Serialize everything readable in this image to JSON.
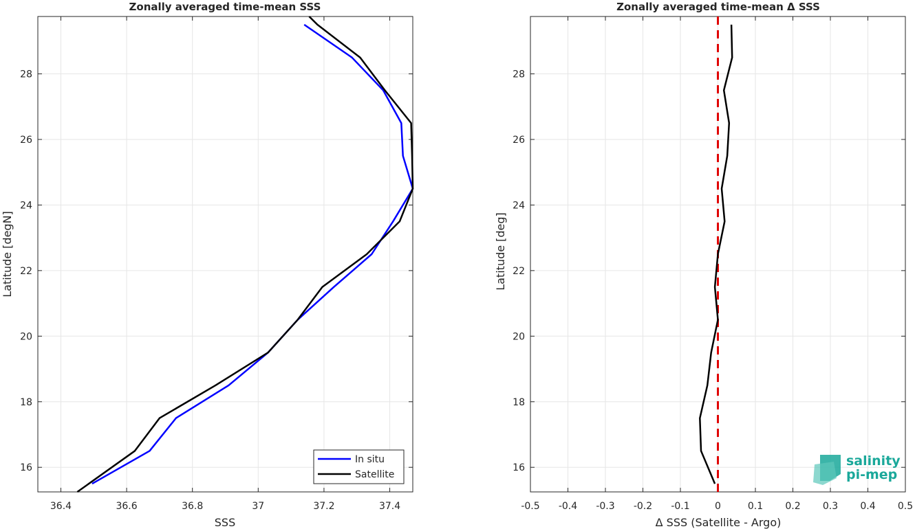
{
  "chart_data": [
    {
      "type": "line",
      "title": "Zonally averaged time-mean SSS",
      "xlabel": "SSS",
      "ylabel": "Latitude [degN]",
      "xlim": [
        36.33,
        37.47
      ],
      "ylim": [
        15.25,
        29.75
      ],
      "xticks": [
        36.4,
        36.6,
        36.8,
        37,
        37.2,
        37.4
      ],
      "xtick_labels": [
        "36.4",
        "36.6",
        "36.8",
        "37",
        "37.2",
        "37.4"
      ],
      "yticks": [
        16,
        18,
        20,
        22,
        24,
        26,
        28
      ],
      "ytick_labels": [
        "16",
        "18",
        "20",
        "22",
        "24",
        "26",
        "28"
      ],
      "grid": true,
      "legend": "bottom-right",
      "series": [
        {
          "name": "In situ",
          "color": "#0000ff",
          "points": [
            [
              36.495,
              15.5
            ],
            [
              36.67,
              16.5
            ],
            [
              36.75,
              17.5
            ],
            [
              36.91,
              18.5
            ],
            [
              37.03,
              19.5
            ],
            [
              37.12,
              20.5
            ],
            [
              37.23,
              21.5
            ],
            [
              37.345,
              22.5
            ],
            [
              37.41,
              23.5
            ],
            [
              37.47,
              24.5
            ],
            [
              37.44,
              25.5
            ],
            [
              37.435,
              26.5
            ],
            [
              37.38,
              27.5
            ],
            [
              37.285,
              28.5
            ],
            [
              37.14,
              29.5
            ]
          ]
        },
        {
          "name": "Satellite",
          "color": "#000000",
          "points": [
            [
              36.45,
              15.25
            ],
            [
              36.625,
              16.5
            ],
            [
              36.7,
              17.5
            ],
            [
              36.87,
              18.5
            ],
            [
              37.03,
              19.5
            ],
            [
              37.12,
              20.5
            ],
            [
              37.195,
              21.5
            ],
            [
              37.33,
              22.5
            ],
            [
              37.43,
              23.5
            ],
            [
              37.47,
              24.5
            ],
            [
              37.468,
              25.5
            ],
            [
              37.465,
              26.5
            ],
            [
              37.385,
              27.5
            ],
            [
              37.31,
              28.5
            ],
            [
              37.18,
              29.5
            ],
            [
              37.155,
              29.75
            ]
          ]
        }
      ]
    },
    {
      "type": "line",
      "title": "Zonally averaged time-mean Δ SSS",
      "xlabel": "Δ SSS (Satellite - Argo)",
      "ylabel": "Latitude [deg]",
      "xlim": [
        -0.5,
        0.5
      ],
      "ylim": [
        15.25,
        29.75
      ],
      "xticks": [
        -0.5,
        -0.4,
        -0.3,
        -0.2,
        -0.1,
        0,
        0.1,
        0.2,
        0.3,
        0.4,
        0.5
      ],
      "xtick_labels": [
        "-0.5",
        "-0.4",
        "-0.3",
        "-0.2",
        "-0.1",
        "0",
        "0.1",
        "0.2",
        "0.3",
        "0.4",
        "0.5"
      ],
      "yticks": [
        16,
        18,
        20,
        22,
        24,
        26,
        28
      ],
      "ytick_labels": [
        "16",
        "18",
        "20",
        "22",
        "24",
        "26",
        "28"
      ],
      "grid": true,
      "reference_line": {
        "x": 0,
        "color": "#e00000",
        "style": "dashed"
      },
      "series": [
        {
          "color": "#000000",
          "points": [
            [
              -0.008,
              15.5
            ],
            [
              -0.045,
              16.5
            ],
            [
              -0.048,
              17.5
            ],
            [
              -0.028,
              18.5
            ],
            [
              -0.018,
              19.5
            ],
            [
              0.0,
              20.5
            ],
            [
              -0.008,
              21.5
            ],
            [
              0.0,
              22.5
            ],
            [
              0.018,
              23.5
            ],
            [
              0.01,
              24.5
            ],
            [
              0.025,
              25.5
            ],
            [
              0.03,
              26.5
            ],
            [
              0.016,
              27.5
            ],
            [
              0.038,
              28.5
            ],
            [
              0.036,
              29.5
            ]
          ]
        }
      ]
    }
  ],
  "logo": {
    "line1": "salinity",
    "line2": "pi-mep"
  }
}
